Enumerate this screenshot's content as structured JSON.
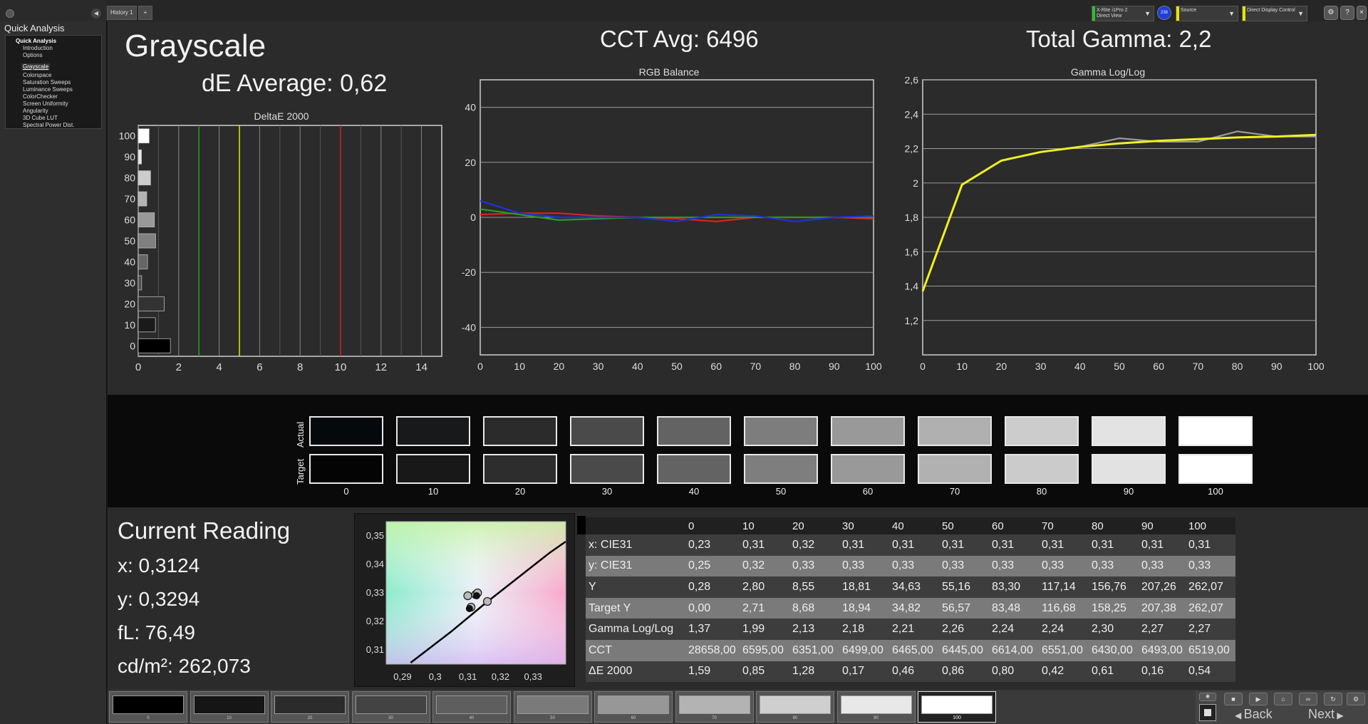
{
  "sidebar": {
    "title": "Quick Analysis",
    "tree_root": "Quick Analysis",
    "items": [
      "Introduction",
      "Options",
      "Grayscale",
      "Colorspace",
      "Saturation Sweeps",
      "Luminance Sweeps",
      "ColorChecker",
      "Screen Uniformity",
      "Angularity",
      "3D Cube LUT",
      "Spectral Power Dist."
    ],
    "selected": "Grayscale"
  },
  "tabs": {
    "history": "History 1",
    "add": "+"
  },
  "topbar": {
    "meter_line1": "X-Rite i1Pro 2",
    "meter_line2": "Direct View",
    "badge": "238",
    "source": "Source",
    "display": "Direct Display Control"
  },
  "header": {
    "title": "Grayscale",
    "de_average": "dE Average: 0,62",
    "cct_avg": "CCT Avg: 6496",
    "total_gamma": "Total Gamma: 2,2"
  },
  "chart_data": [
    {
      "type": "bar",
      "title": "DeltaE 2000",
      "orientation": "horizontal",
      "categories": [
        "100",
        "90",
        "80",
        "70",
        "60",
        "50",
        "40",
        "30",
        "20",
        "10",
        "0"
      ],
      "values": [
        0.54,
        0.16,
        0.61,
        0.42,
        0.8,
        0.86,
        0.46,
        0.17,
        1.28,
        0.85,
        1.59
      ],
      "xlim": [
        0,
        15
      ],
      "xticks": [
        "0",
        "2",
        "4",
        "6",
        "8",
        "10",
        "12",
        "14"
      ],
      "reference_lines": [
        {
          "value": 3,
          "color": "#1fa01f"
        },
        {
          "value": 5,
          "color": "#e6e600"
        },
        {
          "value": 10,
          "color": "#e02020"
        }
      ]
    },
    {
      "type": "line",
      "title": "RGB Balance",
      "x": [
        0,
        10,
        20,
        30,
        40,
        50,
        60,
        70,
        80,
        90,
        100
      ],
      "ylim": [
        -50,
        50
      ],
      "yticks": [
        "40",
        "20",
        "0",
        "-20",
        "-40"
      ],
      "xticks": [
        "0",
        "10",
        "20",
        "30",
        "40",
        "50",
        "60",
        "70",
        "80",
        "90",
        "100"
      ],
      "series": [
        {
          "color": "#e02020",
          "values": [
            1,
            1.5,
            1.5,
            0.5,
            0,
            -0.5,
            -1.5,
            0,
            0,
            0,
            -0.5
          ]
        },
        {
          "color": "#20a020",
          "values": [
            3,
            1,
            -1,
            -0.5,
            0,
            0,
            0,
            0,
            0,
            0,
            0
          ]
        },
        {
          "color": "#2030e0",
          "values": [
            6,
            1.5,
            0,
            0,
            0,
            -1.5,
            1,
            0.5,
            -1.5,
            0,
            0.5
          ]
        }
      ]
    },
    {
      "type": "line",
      "title": "Gamma Log/Log",
      "x": [
        0,
        10,
        20,
        30,
        40,
        50,
        60,
        70,
        80,
        90,
        100
      ],
      "ylim": [
        1.0,
        2.6
      ],
      "yticks": [
        "2,6",
        "2,4",
        "2,2",
        "2",
        "1,8",
        "1,6",
        "1,4",
        "1,2"
      ],
      "xticks": [
        "0",
        "10",
        "20",
        "30",
        "40",
        "50",
        "60",
        "70",
        "80",
        "90",
        "100"
      ],
      "series": [
        {
          "color": "#9a9a9a",
          "values": [
            1.37,
            1.99,
            2.13,
            2.18,
            2.21,
            2.26,
            2.24,
            2.24,
            2.3,
            2.27,
            2.27
          ]
        },
        {
          "color": "#f0f020",
          "values": [
            1.37,
            1.99,
            2.13,
            2.18,
            2.21,
            2.23,
            2.245,
            2.255,
            2.265,
            2.27,
            2.28
          ]
        }
      ]
    },
    {
      "type": "scatter",
      "title": "",
      "xlim": [
        0.285,
        0.34
      ],
      "ylim": [
        0.305,
        0.355
      ],
      "xticks": [
        "0,29",
        "0,3",
        "0,31",
        "0,32",
        "0,33"
      ],
      "yticks": [
        "0,35",
        "0,34",
        "0,33",
        "0,32",
        "0,31"
      ],
      "target_point": {
        "x": 0.3127,
        "y": 0.329
      },
      "measured": [
        {
          "x": 0.3124,
          "y": 0.3294
        },
        {
          "x": 0.311,
          "y": 0.325
        },
        {
          "x": 0.316,
          "y": 0.327
        },
        {
          "x": 0.313,
          "y": 0.33
        },
        {
          "x": 0.31,
          "y": 0.329
        }
      ]
    }
  ],
  "swatches": {
    "row_actual": "Actual",
    "row_target": "Target",
    "labels": [
      "0",
      "10",
      "20",
      "30",
      "40",
      "50",
      "60",
      "70",
      "80",
      "90",
      "100"
    ],
    "actual_colors": [
      "#06090c",
      "#18191a",
      "#2c2b2c",
      "#4a4a4a",
      "#636363",
      "#7d7d7d",
      "#999999",
      "#b0b0b0",
      "#cccccc",
      "#e3e3e3",
      "#ffffff"
    ],
    "target_colors": [
      "#040404",
      "#181818",
      "#2d2d2d",
      "#4a4a4a",
      "#636363",
      "#7e7e7e",
      "#999999",
      "#b1b1b1",
      "#cbcbcb",
      "#e2e2e2",
      "#ffffff"
    ]
  },
  "reading": {
    "title": "Current Reading",
    "x": "x: 0,3124",
    "y": "y: 0,3294",
    "fl": "fL: 76,49",
    "cdm2": "cd/m²: 262,073"
  },
  "table": {
    "headers": [
      "",
      "0",
      "10",
      "20",
      "30",
      "40",
      "50",
      "60",
      "70",
      "80",
      "90",
      "100"
    ],
    "rows": [
      [
        "x: CIE31",
        "0,23",
        "0,31",
        "0,32",
        "0,31",
        "0,31",
        "0,31",
        "0,31",
        "0,31",
        "0,31",
        "0,31",
        "0,31"
      ],
      [
        "y: CIE31",
        "0,25",
        "0,32",
        "0,33",
        "0,33",
        "0,33",
        "0,33",
        "0,33",
        "0,33",
        "0,33",
        "0,33",
        "0,33"
      ],
      [
        "Y",
        "0,28",
        "2,80",
        "8,55",
        "18,81",
        "34,63",
        "55,16",
        "83,30",
        "117,14",
        "156,76",
        "207,26",
        "262,07"
      ],
      [
        "Target Y",
        "0,00",
        "2,71",
        "8,68",
        "18,94",
        "34,82",
        "56,57",
        "83,48",
        "116,68",
        "158,25",
        "207,38",
        "262,07"
      ],
      [
        "Gamma Log/Log",
        "1,37",
        "1,99",
        "2,13",
        "2,18",
        "2,21",
        "2,26",
        "2,24",
        "2,24",
        "2,30",
        "2,27",
        "2,27"
      ],
      [
        "CCT",
        "28658,00",
        "6595,00",
        "6351,00",
        "6499,00",
        "6465,00",
        "6445,00",
        "6614,00",
        "6551,00",
        "6430,00",
        "6493,00",
        "6519,00"
      ],
      [
        "ΔE 2000",
        "1,59",
        "0,85",
        "1,28",
        "0,17",
        "0,46",
        "0,86",
        "0,80",
        "0,42",
        "0,61",
        "0,16",
        "0,54"
      ]
    ]
  },
  "patch_strip": {
    "labels": [
      "0",
      "10",
      "20",
      "30",
      "40",
      "50",
      "60",
      "70",
      "80",
      "90",
      "100"
    ],
    "colors": [
      "#000000",
      "#151515",
      "#2b2b2b",
      "#434343",
      "#5e5e5e",
      "#7a7a7a",
      "#979797",
      "#b3b3b3",
      "#cfcfcf",
      "#e8e8e8",
      "#ffffff"
    ],
    "selected": "100"
  },
  "nav": {
    "back": "Back",
    "next": "Next"
  }
}
